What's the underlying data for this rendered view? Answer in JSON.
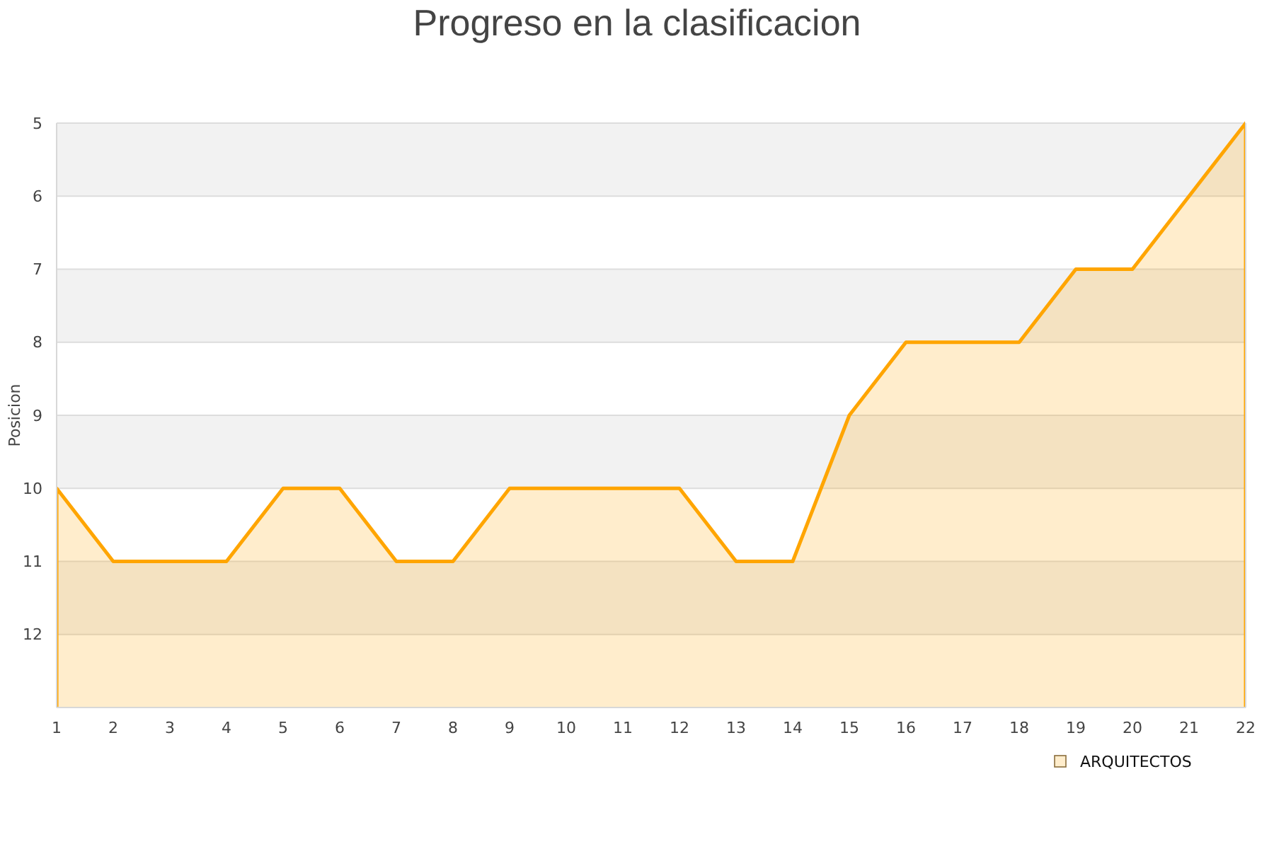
{
  "chart_data": {
    "type": "area",
    "title": "Progreso en la clasificacion",
    "ylabel": "Posicion",
    "x": [
      1,
      2,
      3,
      4,
      5,
      6,
      7,
      8,
      9,
      10,
      11,
      12,
      13,
      14,
      15,
      16,
      17,
      18,
      19,
      20,
      21,
      22
    ],
    "series": [
      {
        "name": "ARQUITECTOS",
        "color": "#ffa500",
        "values": [
          10,
          11,
          11,
          11,
          10,
          10,
          11,
          11,
          10,
          10,
          10,
          10,
          11,
          11,
          9,
          8,
          8,
          8,
          7,
          7,
          6,
          5
        ]
      }
    ],
    "xlim": [
      1,
      22
    ],
    "xticks": [
      1,
      2,
      3,
      4,
      5,
      6,
      7,
      8,
      9,
      10,
      11,
      12,
      13,
      14,
      15,
      16,
      17,
      18,
      19,
      20,
      21,
      22
    ],
    "ylim": [
      13,
      5
    ],
    "yticks": [
      5,
      6,
      7,
      8,
      9,
      10,
      11,
      12
    ],
    "bands": [
      {
        "axis": "y",
        "from": 5,
        "to": 6,
        "color": "#f2f2f2"
      },
      {
        "axis": "y",
        "from": 7,
        "to": 8,
        "color": "#f2f2f2"
      },
      {
        "axis": "y",
        "from": 9,
        "to": 10,
        "color": "#f2f2f2"
      },
      {
        "axis": "y",
        "from": 11,
        "to": 12,
        "color": "#f2f2f2"
      }
    ],
    "grid": "y",
    "legend": "bottom right",
    "marker": "none",
    "line_style": "solid"
  }
}
